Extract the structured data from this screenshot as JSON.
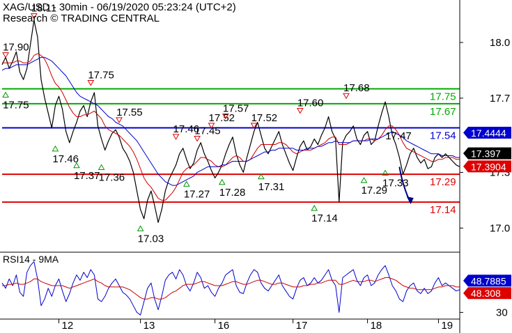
{
  "header": {
    "title": "XAG/USD - 30min - 06/19/2020 05:23:24 (UTC+2)",
    "credit": "Research © TRADING CENTRAL"
  },
  "rsi_panel": {
    "label": "RSI14 - 9MA"
  },
  "chart_data": [
    {
      "type": "line",
      "title": "XAG/USD - 30min - 06/19/2020 05:23:24 (UTC+2)",
      "ylim": [
        16.87,
        18.21
      ],
      "y_ticks": [
        18.0,
        17.7,
        17.3,
        17.0
      ],
      "x_tick_labels": [
        "12",
        "13",
        "16",
        "17",
        "18",
        "19"
      ],
      "x_tick_index": [
        16,
        39,
        60,
        82,
        103,
        123
      ],
      "x_count": 130,
      "series": [
        {
          "role": "price",
          "color": "#000000",
          "values": [
            17.88,
            17.92,
            17.86,
            17.9,
            17.95,
            17.84,
            17.8,
            17.86,
            17.99,
            18.12,
            18.03,
            17.8,
            17.7,
            17.62,
            17.54,
            17.66,
            17.71,
            17.64,
            17.52,
            17.46,
            17.52,
            17.57,
            17.63,
            17.66,
            17.6,
            17.68,
            17.73,
            17.55,
            17.48,
            17.42,
            17.47,
            17.51,
            17.53,
            17.49,
            17.43,
            17.4,
            17.36,
            17.3,
            17.2,
            17.1,
            17.05,
            17.15,
            17.2,
            17.12,
            17.03,
            17.1,
            17.2,
            17.26,
            17.3,
            17.34,
            17.4,
            17.43,
            17.37,
            17.32,
            17.35,
            17.42,
            17.46,
            17.4,
            17.36,
            17.31,
            17.27,
            17.3,
            17.34,
            17.4,
            17.45,
            17.49,
            17.4,
            17.34,
            17.3,
            17.38,
            17.45,
            17.52,
            17.57,
            17.5,
            17.43,
            17.4,
            17.44,
            17.48,
            17.52,
            17.45,
            17.4,
            17.35,
            17.31,
            17.38,
            17.44,
            17.47,
            17.42,
            17.44,
            17.48,
            17.45,
            17.5,
            17.54,
            17.6,
            17.52,
            17.48,
            17.14,
            17.46,
            17.5,
            17.52,
            17.55,
            17.48,
            17.45,
            17.5,
            17.52,
            17.45,
            17.47,
            17.55,
            17.62,
            17.68,
            17.6,
            17.5,
            17.45,
            17.38,
            17.29,
            17.34,
            17.4,
            17.43,
            17.38,
            17.35,
            17.37,
            17.32,
            17.33,
            17.38,
            17.4,
            17.38,
            17.4,
            17.38,
            17.36,
            17.34,
            17.33
          ]
        },
        {
          "role": "ma-fast",
          "color": "#cc0000",
          "values": [
            17.89,
            17.89,
            17.89,
            17.89,
            17.9,
            17.9,
            17.89,
            17.89,
            17.9,
            17.93,
            17.94,
            17.93,
            17.91,
            17.87,
            17.82,
            17.78,
            17.76,
            17.73,
            17.69,
            17.65,
            17.62,
            17.6,
            17.6,
            17.61,
            17.61,
            17.62,
            17.63,
            17.61,
            17.59,
            17.55,
            17.53,
            17.52,
            17.51,
            17.5,
            17.48,
            17.46,
            17.44,
            17.41,
            17.37,
            17.32,
            17.27,
            17.24,
            17.22,
            17.19,
            17.16,
            17.15,
            17.15,
            17.17,
            17.19,
            17.22,
            17.26,
            17.3,
            17.32,
            17.33,
            17.34,
            17.36,
            17.38,
            17.38,
            17.37,
            17.36,
            17.34,
            17.33,
            17.33,
            17.34,
            17.36,
            17.38,
            17.39,
            17.38,
            17.36,
            17.36,
            17.37,
            17.4,
            17.43,
            17.45,
            17.45,
            17.45,
            17.45,
            17.45,
            17.46,
            17.46,
            17.45,
            17.43,
            17.41,
            17.4,
            17.41,
            17.42,
            17.42,
            17.42,
            17.43,
            17.44,
            17.45,
            17.46,
            17.48,
            17.49,
            17.49,
            17.45,
            17.45,
            17.45,
            17.46,
            17.47,
            17.47,
            17.47,
            17.47,
            17.48,
            17.48,
            17.47,
            17.48,
            17.5,
            17.53,
            17.55,
            17.55,
            17.53,
            17.5,
            17.46,
            17.43,
            17.42,
            17.41,
            17.4,
            17.39,
            17.38,
            17.37,
            17.36,
            17.36,
            17.37,
            17.37,
            17.38,
            17.38,
            17.38,
            17.37,
            17.37
          ]
        },
        {
          "role": "ma-slow",
          "color": "#0000cc",
          "values": [
            17.85,
            17.86,
            17.86,
            17.87,
            17.88,
            17.88,
            17.88,
            17.88,
            17.89,
            17.9,
            17.91,
            17.92,
            17.92,
            17.91,
            17.9,
            17.88,
            17.86,
            17.84,
            17.82,
            17.79,
            17.76,
            17.73,
            17.71,
            17.7,
            17.69,
            17.68,
            17.67,
            17.66,
            17.64,
            17.62,
            17.6,
            17.59,
            17.57,
            17.56,
            17.55,
            17.53,
            17.51,
            17.49,
            17.47,
            17.44,
            17.41,
            17.38,
            17.35,
            17.32,
            17.29,
            17.27,
            17.25,
            17.24,
            17.23,
            17.23,
            17.24,
            17.25,
            17.26,
            17.27,
            17.28,
            17.3,
            17.31,
            17.32,
            17.33,
            17.33,
            17.33,
            17.33,
            17.34,
            17.34,
            17.35,
            17.36,
            17.36,
            17.36,
            17.36,
            17.36,
            17.37,
            17.38,
            17.39,
            17.4,
            17.41,
            17.41,
            17.42,
            17.42,
            17.43,
            17.43,
            17.43,
            17.43,
            17.43,
            17.42,
            17.42,
            17.42,
            17.43,
            17.43,
            17.43,
            17.44,
            17.44,
            17.45,
            17.46,
            17.46,
            17.47,
            17.46,
            17.46,
            17.46,
            17.46,
            17.47,
            17.47,
            17.47,
            17.47,
            17.47,
            17.48,
            17.48,
            17.48,
            17.49,
            17.5,
            17.51,
            17.52,
            17.51,
            17.5,
            17.49,
            17.47,
            17.46,
            17.45,
            17.44,
            17.43,
            17.42,
            17.41,
            17.4,
            17.4,
            17.4,
            17.39,
            17.39,
            17.39,
            17.39,
            17.38,
            17.38
          ]
        }
      ],
      "horizontal_levels": [
        {
          "value": 17.75,
          "label": "17.75",
          "color": "#00aa00"
        },
        {
          "value": 17.67,
          "label": "17.67",
          "color": "#00aa00"
        },
        {
          "value": 17.54,
          "label": "17.54",
          "color": "#0000cc"
        },
        {
          "value": 17.29,
          "label": "17.29",
          "color": "#dd0000"
        },
        {
          "value": 17.14,
          "label": "17.14",
          "color": "#dd0000"
        }
      ],
      "price_tags": [
        {
          "value": 17.4444,
          "label": "17.4444",
          "color": "#0000cc"
        },
        {
          "value": 17.397,
          "label": "17.397",
          "color": "#000000"
        },
        {
          "value": 17.3904,
          "label": "17.3904",
          "color": "#dd0000"
        }
      ],
      "pivot_markers": [
        {
          "index": 1,
          "value": 17.9,
          "label": "17.90",
          "kind": "high"
        },
        {
          "index": 9,
          "value": 18.11,
          "label": "18.11",
          "kind": "high"
        },
        {
          "index": 1,
          "value": 17.75,
          "label": "17.75",
          "kind": "low"
        },
        {
          "index": 25,
          "value": 17.75,
          "label": "17.75",
          "kind": "high"
        },
        {
          "index": 33,
          "value": 17.55,
          "label": "17.55",
          "kind": "high"
        },
        {
          "index": 15,
          "value": 17.46,
          "label": "17.46",
          "kind": "low"
        },
        {
          "index": 21,
          "value": 17.37,
          "label": "17.37",
          "kind": "low"
        },
        {
          "index": 28,
          "value": 17.36,
          "label": "17.36",
          "kind": "low"
        },
        {
          "index": 39,
          "value": 17.03,
          "label": "17.03",
          "kind": "low"
        },
        {
          "index": 49,
          "value": 17.46,
          "label": "17.46",
          "kind": "high"
        },
        {
          "index": 55,
          "value": 17.45,
          "label": "17.45",
          "kind": "high"
        },
        {
          "index": 59,
          "value": 17.52,
          "label": "17.52",
          "kind": "high"
        },
        {
          "index": 63,
          "value": 17.57,
          "label": "17.57",
          "kind": "high"
        },
        {
          "index": 71,
          "value": 17.52,
          "label": "17.52",
          "kind": "high"
        },
        {
          "index": 84,
          "value": 17.6,
          "label": "17.60",
          "kind": "high"
        },
        {
          "index": 97,
          "value": 17.68,
          "label": "17.68",
          "kind": "high"
        },
        {
          "index": 52,
          "value": 17.27,
          "label": "17.27",
          "kind": "low"
        },
        {
          "index": 62,
          "value": 17.28,
          "label": "17.28",
          "kind": "low"
        },
        {
          "index": 73,
          "value": 17.31,
          "label": "17.31",
          "kind": "low"
        },
        {
          "index": 88,
          "value": 17.14,
          "label": "17.14",
          "kind": "low"
        },
        {
          "index": 102,
          "value": 17.29,
          "label": "17.29",
          "kind": "low"
        },
        {
          "index": 108,
          "value": 17.33,
          "label": "17.33",
          "kind": "low"
        },
        {
          "index": 110,
          "value": 17.47,
          "label": "17.47",
          "kind": "label-only"
        }
      ],
      "forecast_arrow": {
        "from_index": 112,
        "from_value": 17.33,
        "to_index": 115,
        "to_value": 17.14,
        "color": "#000080"
      }
    },
    {
      "type": "line",
      "title": "RSI14 - 9MA",
      "ylim": [
        25,
        75
      ],
      "y_ticks": [
        30
      ],
      "series": [
        {
          "role": "rsi",
          "color": "#0000cc",
          "values": [
            52,
            48,
            55,
            50,
            58,
            45,
            42,
            60,
            65,
            68,
            55,
            35,
            40,
            48,
            42,
            50,
            55,
            46,
            38,
            44,
            52,
            58,
            54,
            60,
            56,
            62,
            58,
            40,
            38,
            42,
            48,
            52,
            55,
            50,
            45,
            43,
            40,
            35,
            30,
            28,
            38,
            48,
            52,
            40,
            32,
            42,
            54,
            58,
            60,
            55,
            62,
            58,
            50,
            46,
            52,
            60,
            56,
            48,
            50,
            45,
            42,
            48,
            52,
            58,
            60,
            62,
            50,
            45,
            44,
            52,
            58,
            62,
            60,
            52,
            48,
            46,
            50,
            54,
            58,
            50,
            46,
            42,
            40,
            48,
            54,
            56,
            50,
            52,
            56,
            52,
            54,
            58,
            62,
            54,
            50,
            30,
            56,
            58,
            60,
            62,
            54,
            50,
            56,
            58,
            50,
            52,
            58,
            62,
            65,
            58,
            50,
            46,
            40,
            38,
            46,
            50,
            52,
            46,
            44,
            48,
            44,
            46,
            52,
            56,
            50,
            52,
            50,
            48,
            46,
            47
          ]
        },
        {
          "role": "rsi-ma",
          "color": "#cc0000",
          "values": [
            50,
            50,
            51,
            51,
            52,
            51,
            51,
            52,
            53,
            55,
            55,
            53,
            52,
            51,
            50,
            50,
            50,
            50,
            49,
            48,
            49,
            50,
            51,
            52,
            53,
            54,
            55,
            53,
            52,
            50,
            49,
            49,
            49,
            49,
            49,
            48,
            47,
            45,
            43,
            41,
            40,
            40,
            41,
            41,
            40,
            40,
            41,
            43,
            45,
            46,
            48,
            50,
            51,
            51,
            51,
            52,
            53,
            53,
            52,
            51,
            50,
            50,
            50,
            51,
            52,
            53,
            53,
            52,
            51,
            51,
            52,
            53,
            54,
            54,
            53,
            52,
            51,
            51,
            52,
            52,
            51,
            50,
            49,
            49,
            49,
            50,
            50,
            51,
            51,
            52,
            52,
            53,
            54,
            54,
            54,
            51,
            51,
            52,
            53,
            54,
            53,
            53,
            53,
            54,
            54,
            53,
            54,
            55,
            56,
            56,
            55,
            54,
            52,
            50,
            49,
            48,
            48,
            47,
            47,
            47,
            47,
            47,
            48,
            49,
            49,
            50,
            50,
            50,
            49,
            49
          ]
        }
      ],
      "price_tags": [
        {
          "value": 48.7885,
          "label": "48.7885",
          "color": "#0000cc"
        },
        {
          "value": 48.308,
          "label": "48.308",
          "color": "#dd0000"
        }
      ]
    }
  ]
}
